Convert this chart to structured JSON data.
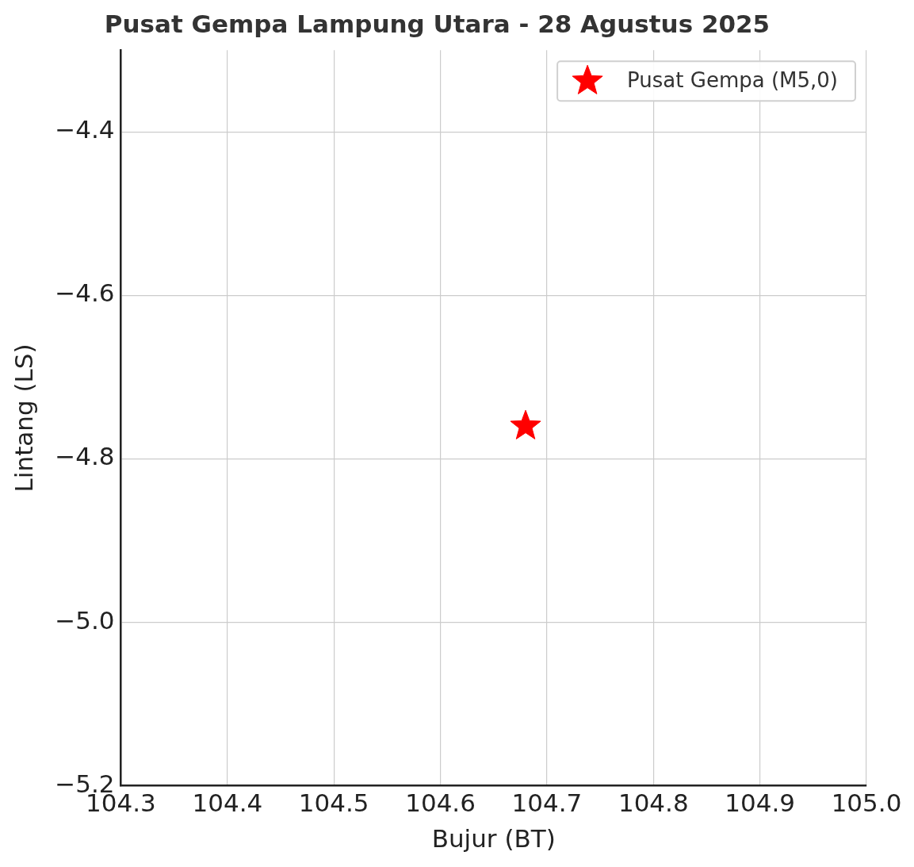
{
  "chart_data": {
    "type": "scatter",
    "title": "Pusat Gempa Lampung Utara - 28 Agustus 2025",
    "xlabel": "Bujur (BT)",
    "ylabel": "Lintang (LS)",
    "x": [
      104.68
    ],
    "series": [
      {
        "name": "Pusat Gempa (M5,0)",
        "color": "#ff0000",
        "values": [
          -4.76
        ]
      }
    ],
    "xlim": [
      104.3,
      105.0
    ],
    "xticks": [
      104.3,
      104.4,
      104.5,
      104.6,
      104.7,
      104.8,
      104.9,
      {
        "value": 105.0,
        "label": "105.0"
      }
    ],
    "ylim": [
      -5.2,
      -4.3
    ],
    "yticks": [
      {
        "value": -5.2,
        "label": "−5.2"
      },
      {
        "value": -5.0,
        "label": "−5.0"
      },
      {
        "value": -4.8,
        "label": "−4.8"
      },
      {
        "value": -4.6,
        "label": "−4.6"
      },
      {
        "value": -4.4,
        "label": "−4.4"
      }
    ],
    "grid": true,
    "legend": "top right",
    "marker": "star"
  }
}
